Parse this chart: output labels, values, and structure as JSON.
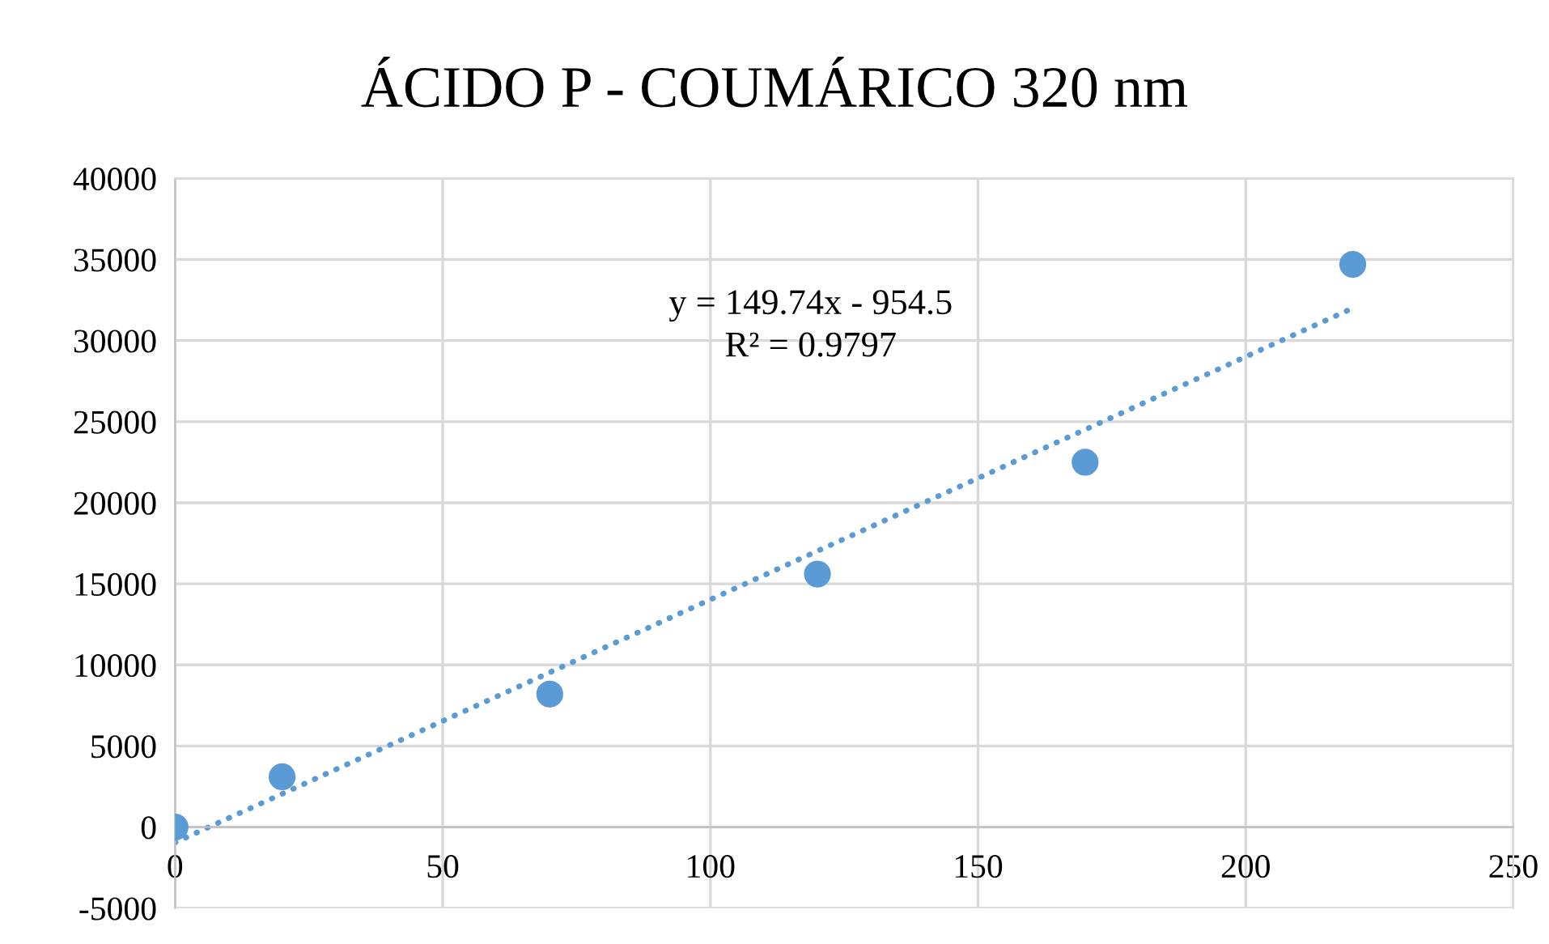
{
  "chart_data": {
    "type": "scatter",
    "title": "ÁCIDO P - COUMÁRICO 320 nm",
    "series": [
      {
        "color": "#5b9bd5",
        "x": [
          0,
          20,
          70,
          120,
          170,
          220
        ],
        "values": [
          0,
          3100,
          8200,
          15600,
          22500,
          34700
        ],
        "marker": "circle"
      },
      {
        "type": "line",
        "color": "#5b9bd5",
        "x": [
          0,
          220
        ],
        "values": [
          -950,
          32000
        ],
        "line_style": "dotted",
        "marker": "none"
      }
    ],
    "xlim": [
      0,
      250
    ],
    "xticks": [
      0,
      50,
      100,
      150,
      200,
      250
    ],
    "ylim": [
      -5000,
      40000
    ],
    "yticks": [
      -5000,
      0,
      5000,
      10000,
      15000,
      20000,
      25000,
      30000,
      35000,
      40000
    ],
    "grid": true,
    "legend": false,
    "annotations": [
      "y = 149.74x - 954.5",
      "R² = 0.9797"
    ]
  }
}
